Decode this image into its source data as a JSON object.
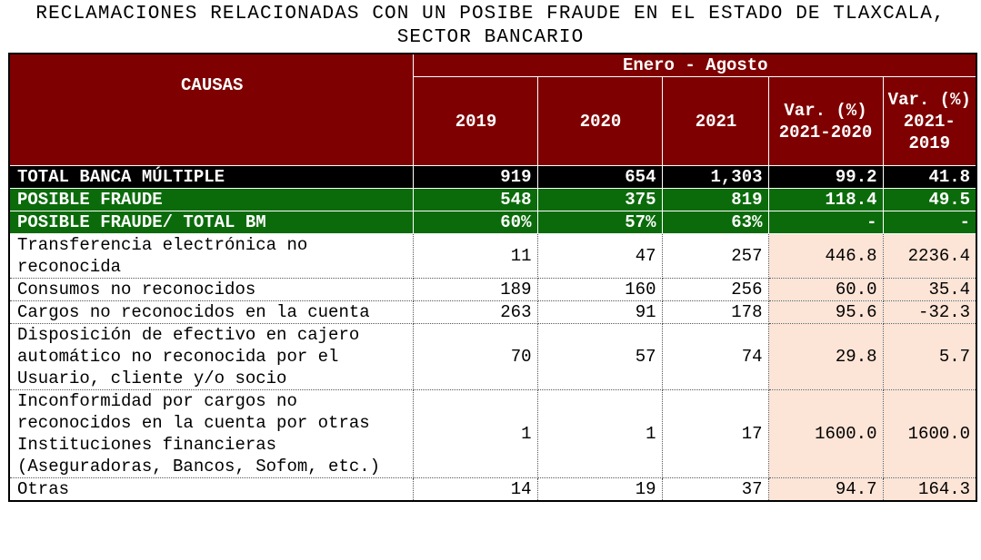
{
  "title": [
    "RECLAMACIONES RELACIONADAS CON UN POSIBE FRAUDE EN EL ESTADO DE TLAXCALA,",
    "SECTOR BANCARIO"
  ],
  "table": {
    "row_header": "CAUSAS",
    "period": "Enero - Agosto",
    "columns": [
      "2019",
      "2020",
      "2021",
      "Var. (%) 2021-2020",
      "Var. (%) 2021-2019"
    ],
    "rows": [
      [
        "TOTAL BANCA MÚLTIPLE",
        "919",
        "654",
        "1,303",
        "99.2",
        "41.8"
      ],
      [
        "POSIBLE FRAUDE",
        "548",
        "375",
        "819",
        "118.4",
        "49.5"
      ],
      [
        "POSIBLE FRAUDE/ TOTAL BM",
        "60%",
        "57%",
        "63%",
        "-",
        "-"
      ],
      [
        "Transferencia electrónica no reconocida",
        "11",
        "47",
        "257",
        "446.8",
        "2236.4"
      ],
      [
        "Consumos no reconocidos",
        "189",
        "160",
        "256",
        "60.0",
        "35.4"
      ],
      [
        "Cargos no reconocidos en la cuenta",
        "263",
        "91",
        "178",
        "95.6",
        "-32.3"
      ],
      [
        "Disposición de efectivo en cajero automático no reconocida por el Usuario, cliente y/o socio",
        "70",
        "57",
        "74",
        "29.8",
        "5.7"
      ],
      [
        "Inconformidad por cargos no reconocidos en la cuenta por otras Instituciones financieras (Aseguradoras, Bancos, Sofom, etc.)",
        "1",
        "1",
        "17",
        "1600.0",
        "1600.0"
      ],
      [
        "Otras",
        "14",
        "19",
        "37",
        "94.7",
        "164.3"
      ]
    ]
  }
}
